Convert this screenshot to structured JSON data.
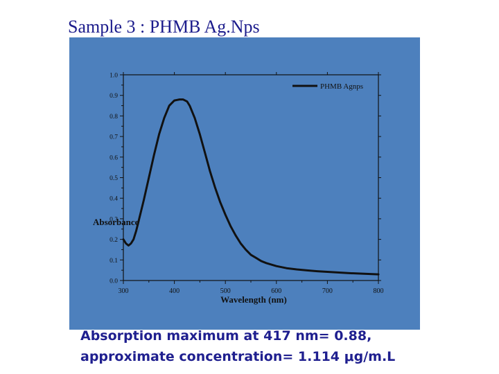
{
  "slide": {
    "title": "Sample 3 : PHMB Ag.Nps",
    "caption_lines": [
      "Absorption maximum at 417 nm= 0.88,",
      "approximate concentration= 1.114 μg/m.L"
    ]
  },
  "colors": {
    "panel": "#4d80bd",
    "line": "#111111",
    "axis": "#111111",
    "title": "#1c1c8c"
  },
  "chart_data": {
    "type": "line",
    "title": "",
    "xlabel": "Wavelength (nm)",
    "ylabel": "Absorbance",
    "xlim": [
      300,
      800
    ],
    "ylim": [
      0.0,
      1.0
    ],
    "x_ticks": [
      "300",
      "400",
      "500",
      "600",
      "700",
      "800"
    ],
    "y_ticks": [
      "0.0",
      "0.1",
      "0.2",
      "0.3",
      "0.4",
      "0.5",
      "0.6",
      "0.7",
      "0.8",
      "0.9",
      "1.0"
    ],
    "legend_position": "top-right",
    "grid": false,
    "series": [
      {
        "name": "PHMB Agnps",
        "x": [
          300,
          305,
          310,
          315,
          320,
          325,
          330,
          340,
          350,
          360,
          370,
          380,
          390,
          400,
          410,
          417,
          425,
          430,
          440,
          450,
          460,
          470,
          480,
          490,
          500,
          510,
          520,
          530,
          540,
          550,
          560,
          570,
          580,
          600,
          620,
          640,
          660,
          680,
          700,
          720,
          740,
          760,
          780,
          800
        ],
        "y": [
          0.2,
          0.18,
          0.17,
          0.18,
          0.2,
          0.24,
          0.29,
          0.39,
          0.5,
          0.61,
          0.71,
          0.79,
          0.85,
          0.875,
          0.88,
          0.88,
          0.87,
          0.85,
          0.79,
          0.71,
          0.62,
          0.53,
          0.45,
          0.38,
          0.32,
          0.265,
          0.22,
          0.18,
          0.15,
          0.125,
          0.11,
          0.095,
          0.085,
          0.07,
          0.06,
          0.054,
          0.049,
          0.045,
          0.042,
          0.039,
          0.036,
          0.034,
          0.032,
          0.03
        ]
      }
    ]
  }
}
